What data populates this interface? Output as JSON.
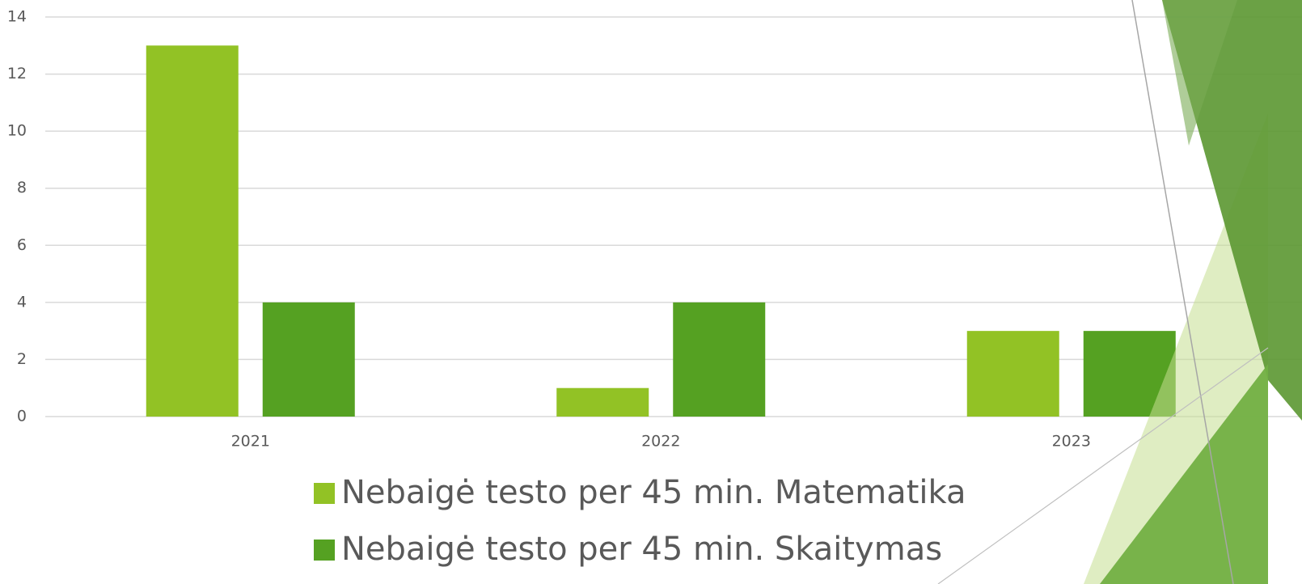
{
  "chart_data": {
    "type": "bar",
    "categories": [
      "2021",
      "2022",
      "2023"
    ],
    "series": [
      {
        "name": "Nebaigė testo per 45 min. Matematika",
        "color": "#92c225",
        "values": [
          13,
          1,
          3
        ]
      },
      {
        "name": "Nebaigė testo per 45 min. Skaitymas",
        "color": "#55a122",
        "values": [
          4,
          4,
          3
        ]
      }
    ],
    "ylim": [
      0,
      14
    ],
    "yticks": [
      0,
      2,
      4,
      6,
      8,
      10,
      12,
      14
    ],
    "grid": true
  }
}
